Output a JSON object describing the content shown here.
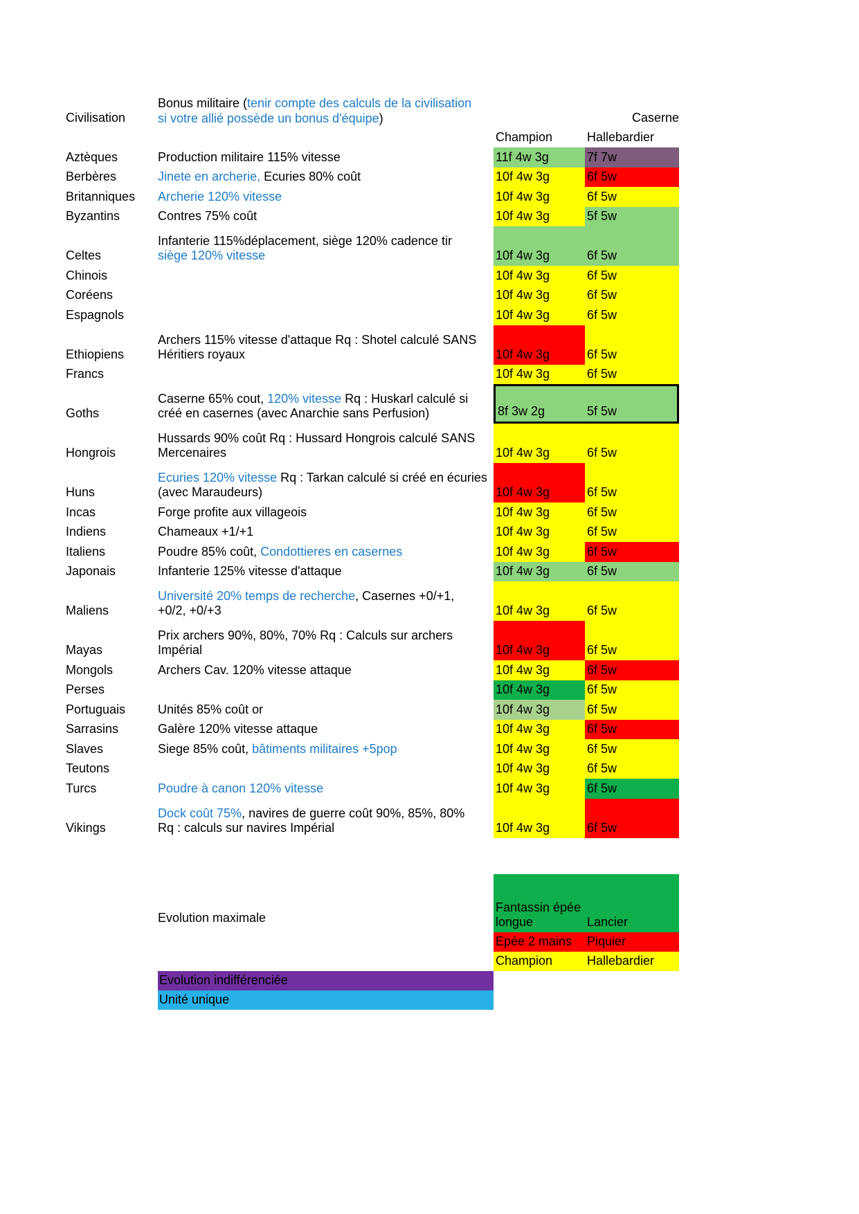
{
  "header": {
    "civilisation": "Civilisation",
    "bonus_black1": "Bonus militaire (",
    "bonus_blue1": "tenir compte des calculs de la civilisation",
    "bonus_blue2": "si votre allié possède un bonus d'équipe",
    "bonus_black2": ")",
    "caserne": "Caserne",
    "champion": "Champion",
    "hallebardier": "Hallebardier"
  },
  "colors": {
    "yellow": "#FFFF00",
    "red": "#FF0000",
    "green_light": "#8CD47E",
    "green_dark": "#0FAF4B",
    "green_pale": "#A9D18E",
    "mauve": "#7E5C7B",
    "purple": "#7030A0",
    "cyan": "#29B0E6",
    "blue_text": "#1F7CC8"
  },
  "rows": [
    {
      "civ": "Aztèques",
      "bonus": [
        {
          "t": "Production militaire 115% vitesse",
          "c": "k"
        }
      ],
      "champion": {
        "v": "11f 4w 3g",
        "bg": "green_light"
      },
      "halberdier": {
        "v": "7f 7w",
        "bg": "mauve"
      },
      "tall": false
    },
    {
      "civ": "Berbères",
      "bonus": [
        {
          "t": "Jinete en archerie,",
          "c": "b"
        },
        {
          "t": " Ecuries 80% coût",
          "c": "k"
        }
      ],
      "champion": {
        "v": "10f 4w 3g",
        "bg": "yellow"
      },
      "halberdier": {
        "v": "6f 5w",
        "bg": "red"
      },
      "tall": false
    },
    {
      "civ": "Britanniques",
      "bonus": [
        {
          "t": "Archerie 120% vitesse",
          "c": "b"
        }
      ],
      "champion": {
        "v": "10f 4w 3g",
        "bg": "yellow"
      },
      "halberdier": {
        "v": "6f 5w",
        "bg": "yellow"
      },
      "tall": false
    },
    {
      "civ": "Byzantins",
      "bonus": [
        {
          "t": "Contres 75% coût",
          "c": "k"
        }
      ],
      "champion": {
        "v": "10f 4w 3g",
        "bg": "yellow"
      },
      "halberdier": {
        "v": "5f 5w",
        "bg": "green_light"
      },
      "tall": false
    },
    {
      "civ": "Celtes",
      "bonus": [
        {
          "t": "Infanterie 115%déplacement, siège 120% cadence tir\n",
          "c": "k"
        },
        {
          "t": "siège 120% vitesse",
          "c": "b"
        }
      ],
      "champion": {
        "v": "10f 4w 3g",
        "bg": "green_light"
      },
      "halberdier": {
        "v": "6f 5w",
        "bg": "green_light"
      },
      "tall": true
    },
    {
      "civ": "Chinois",
      "bonus": [],
      "champion": {
        "v": "10f 4w 3g",
        "bg": "yellow"
      },
      "halberdier": {
        "v": "6f 5w",
        "bg": "yellow"
      },
      "tall": false
    },
    {
      "civ": "Coréens",
      "bonus": [],
      "champion": {
        "v": "10f 4w 3g",
        "bg": "yellow"
      },
      "halberdier": {
        "v": "6f 5w",
        "bg": "yellow"
      },
      "tall": false
    },
    {
      "civ": "Espagnols",
      "bonus": [],
      "champion": {
        "v": "10f 4w 3g",
        "bg": "yellow"
      },
      "halberdier": {
        "v": "6f 5w",
        "bg": "yellow"
      },
      "tall": false
    },
    {
      "civ": "Ethiopiens",
      "bonus": [
        {
          "t": "Archers 115% vitesse d'attaque Rq : Shotel calculé SANS\nHéritiers royaux",
          "c": "k"
        }
      ],
      "champion": {
        "v": "10f 4w 3g",
        "bg": "red"
      },
      "halberdier": {
        "v": "6f 5w",
        "bg": "yellow"
      },
      "tall": true
    },
    {
      "civ": "Francs",
      "bonus": [],
      "champion": {
        "v": "10f 4w 3g",
        "bg": "yellow"
      },
      "halberdier": {
        "v": "6f 5w",
        "bg": "yellow"
      },
      "tall": false
    },
    {
      "civ": "Goths",
      "bonus": [
        {
          "t": "Caserne 65% cout, ",
          "c": "k"
        },
        {
          "t": "120% vitesse",
          "c": "b"
        },
        {
          "t": " Rq : Huskarl calculé si\ncréé en casernes (avec Anarchie sans Perfusion)",
          "c": "k"
        }
      ],
      "champion": {
        "v": "8f 3w 2g",
        "bg": "green_light"
      },
      "halberdier": {
        "v": "5f 5w",
        "bg": "green_light"
      },
      "tall": true,
      "border": true
    },
    {
      "civ": "Hongrois",
      "bonus": [
        {
          "t": "Hussards 90% coût Rq : Hussard Hongrois calculé SANS\nMercenaires",
          "c": "k"
        }
      ],
      "champion": {
        "v": "10f 4w 3g",
        "bg": "yellow"
      },
      "halberdier": {
        "v": "6f 5w",
        "bg": "yellow"
      },
      "tall": true
    },
    {
      "civ": "Huns",
      "bonus": [
        {
          "t": "Ecuries 120% vitesse",
          "c": "b"
        },
        {
          "t": " Rq : Tarkan calculé si créé en écuries\n(avec Maraudeurs)",
          "c": "k"
        }
      ],
      "champion": {
        "v": "10f 4w 3g",
        "bg": "red"
      },
      "halberdier": {
        "v": "6f 5w",
        "bg": "yellow"
      },
      "tall": true
    },
    {
      "civ": "Incas",
      "bonus": [
        {
          "t": "Forge profite aux villageois",
          "c": "k"
        }
      ],
      "champion": {
        "v": "10f 4w 3g",
        "bg": "yellow"
      },
      "halberdier": {
        "v": "6f 5w",
        "bg": "yellow"
      },
      "tall": false
    },
    {
      "civ": "Indiens",
      "bonus": [
        {
          "t": "Chameaux +1/+1",
          "c": "k"
        }
      ],
      "champion": {
        "v": "10f 4w 3g",
        "bg": "yellow"
      },
      "halberdier": {
        "v": "6f 5w",
        "bg": "yellow"
      },
      "tall": false
    },
    {
      "civ": "Italiens",
      "bonus": [
        {
          "t": "Poudre 85% coût, ",
          "c": "k"
        },
        {
          "t": "Condottieres en casernes",
          "c": "b"
        }
      ],
      "champion": {
        "v": "10f 4w 3g",
        "bg": "yellow"
      },
      "halberdier": {
        "v": "6f 5w",
        "bg": "red"
      },
      "tall": false
    },
    {
      "civ": "Japonais",
      "bonus": [
        {
          "t": "Infanterie 125% vitesse d'attaque",
          "c": "k"
        }
      ],
      "champion": {
        "v": "10f 4w 3g",
        "bg": "green_light"
      },
      "halberdier": {
        "v": "6f 5w",
        "bg": "green_light"
      },
      "tall": false
    },
    {
      "civ": "Maliens",
      "bonus": [
        {
          "t": "Université 20% temps de recherche",
          "c": "b"
        },
        {
          "t": ", Casernes +0/+1,\n+0/2, +0/+3",
          "c": "k"
        }
      ],
      "champion": {
        "v": "10f 4w 3g",
        "bg": "yellow"
      },
      "halberdier": {
        "v": "6f 5w",
        "bg": "yellow"
      },
      "tall": true
    },
    {
      "civ": "Mayas",
      "bonus": [
        {
          "t": "Prix archers 90%, 80%, 70% Rq : Calculs sur archers\nImpérial",
          "c": "k"
        }
      ],
      "champion": {
        "v": "10f 4w 3g",
        "bg": "red"
      },
      "halberdier": {
        "v": "6f 5w",
        "bg": "yellow"
      },
      "tall": true
    },
    {
      "civ": "Mongols",
      "bonus": [
        {
          "t": "Archers Cav. 120% vitesse attaque",
          "c": "k"
        }
      ],
      "champion": {
        "v": "10f 4w 3g",
        "bg": "yellow"
      },
      "halberdier": {
        "v": "6f 5w",
        "bg": "red"
      },
      "tall": false
    },
    {
      "civ": "Perses",
      "bonus": [],
      "champion": {
        "v": "10f 4w 3g",
        "bg": "green_dark"
      },
      "halberdier": {
        "v": "6f 5w",
        "bg": "yellow"
      },
      "tall": false
    },
    {
      "civ": "Portuguais",
      "bonus": [
        {
          "t": "Unités 85% coût or",
          "c": "k"
        }
      ],
      "champion": {
        "v": "10f 4w 3g",
        "bg": "green_pale"
      },
      "halberdier": {
        "v": "6f 5w",
        "bg": "yellow"
      },
      "tall": false
    },
    {
      "civ": "Sarrasins",
      "bonus": [
        {
          "t": "Galère 120% vitesse attaque",
          "c": "k"
        }
      ],
      "champion": {
        "v": "10f 4w 3g",
        "bg": "yellow"
      },
      "halberdier": {
        "v": "6f 5w",
        "bg": "red"
      },
      "tall": false
    },
    {
      "civ": "Slaves",
      "bonus": [
        {
          "t": "Siege 85% coût, ",
          "c": "k"
        },
        {
          "t": "bâtiments militaires +5pop",
          "c": "b"
        }
      ],
      "champion": {
        "v": "10f 4w 3g",
        "bg": "yellow"
      },
      "halberdier": {
        "v": "6f 5w",
        "bg": "yellow"
      },
      "tall": false
    },
    {
      "civ": "Teutons",
      "bonus": [],
      "champion": {
        "v": "10f 4w 3g",
        "bg": "yellow"
      },
      "halberdier": {
        "v": "6f 5w",
        "bg": "yellow"
      },
      "tall": false
    },
    {
      "civ": "Turcs",
      "bonus": [
        {
          "t": "Poudre à canon 120% vitesse",
          "c": "b"
        }
      ],
      "champion": {
        "v": "10f 4w 3g",
        "bg": "yellow"
      },
      "halberdier": {
        "v": "6f 5w",
        "bg": "green_dark"
      },
      "tall": false
    },
    {
      "civ": "Vikings",
      "bonus": [
        {
          "t": "Dock coût 75%",
          "c": "b"
        },
        {
          "t": ", navires de guerre coût 90%, 85%, 80%\nRq : calculs sur navires Impérial",
          "c": "k"
        }
      ],
      "champion": {
        "v": "10f 4w 3g",
        "bg": "yellow"
      },
      "halberdier": {
        "v": "6f 5w",
        "bg": "red"
      },
      "tall": true
    }
  ],
  "legend": {
    "title": "Evolution maximale",
    "max": [
      {
        "left": "Fantassin épée longue",
        "right": "Lancier",
        "bg": "green_dark"
      },
      {
        "left": "Epée 2 mains",
        "right": "Piquier",
        "bg": "red"
      },
      {
        "left": "Champion",
        "right": "Hallebardier",
        "bg": "yellow"
      }
    ],
    "indiff": "Evolution indifférenciée",
    "unique": "Unité unique"
  }
}
